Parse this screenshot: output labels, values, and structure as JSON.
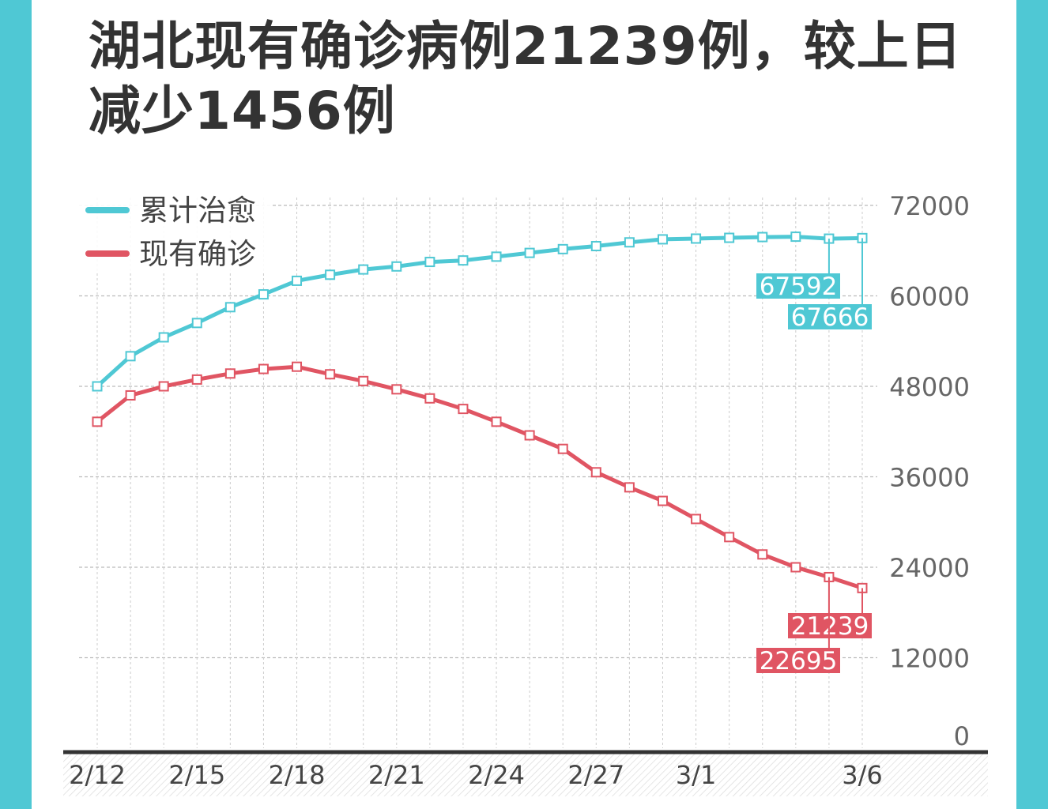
{
  "title": "湖北现有确诊病例21239例，较上日减少1456例",
  "colors": {
    "frame": "#4fc8d4",
    "cured": "#4fc8d4",
    "active": "#e05563",
    "text": "#333333",
    "axis": "#666666",
    "grid": "#bbbbbb"
  },
  "chart_data": {
    "type": "line",
    "grid": true,
    "legend_position": "top-left",
    "y_axis_side": "right",
    "ylim": [
      0,
      72000
    ],
    "yticks": [
      "0",
      "12000",
      "24000",
      "36000",
      "48000",
      "60000",
      "72000"
    ],
    "x": [
      "2/12",
      "2/13",
      "2/14",
      "2/15",
      "2/16",
      "2/17",
      "2/18",
      "2/19",
      "2/20",
      "2/21",
      "2/22",
      "2/23",
      "2/24",
      "2/25",
      "2/26",
      "2/27",
      "2/28",
      "2/29",
      "3/1",
      "3/2",
      "3/3",
      "3/4",
      "3/5",
      "3/6"
    ],
    "xtick_labels": [
      "2/12",
      "2/15",
      "2/18",
      "2/21",
      "2/24",
      "2/27",
      "3/1",
      "3/6"
    ],
    "series": [
      {
        "name": "累计治愈",
        "values": [
          48000,
          52000,
          54500,
          56400,
          58500,
          60200,
          62000,
          62800,
          63500,
          63900,
          64500,
          64700,
          65200,
          65700,
          66200,
          66600,
          67100,
          67500,
          67600,
          67700,
          67800,
          67850,
          67592,
          67666
        ],
        "labels": [
          "67592",
          "67666"
        ]
      },
      {
        "name": "现有确诊",
        "values": [
          43300,
          46800,
          48000,
          48900,
          49700,
          50300,
          50600,
          49600,
          48700,
          47600,
          46400,
          45000,
          43300,
          41500,
          39700,
          36600,
          34600,
          32800,
          30400,
          28000,
          25700,
          24000,
          22695,
          21239
        ],
        "labels": [
          "21239",
          "22695"
        ]
      }
    ]
  }
}
